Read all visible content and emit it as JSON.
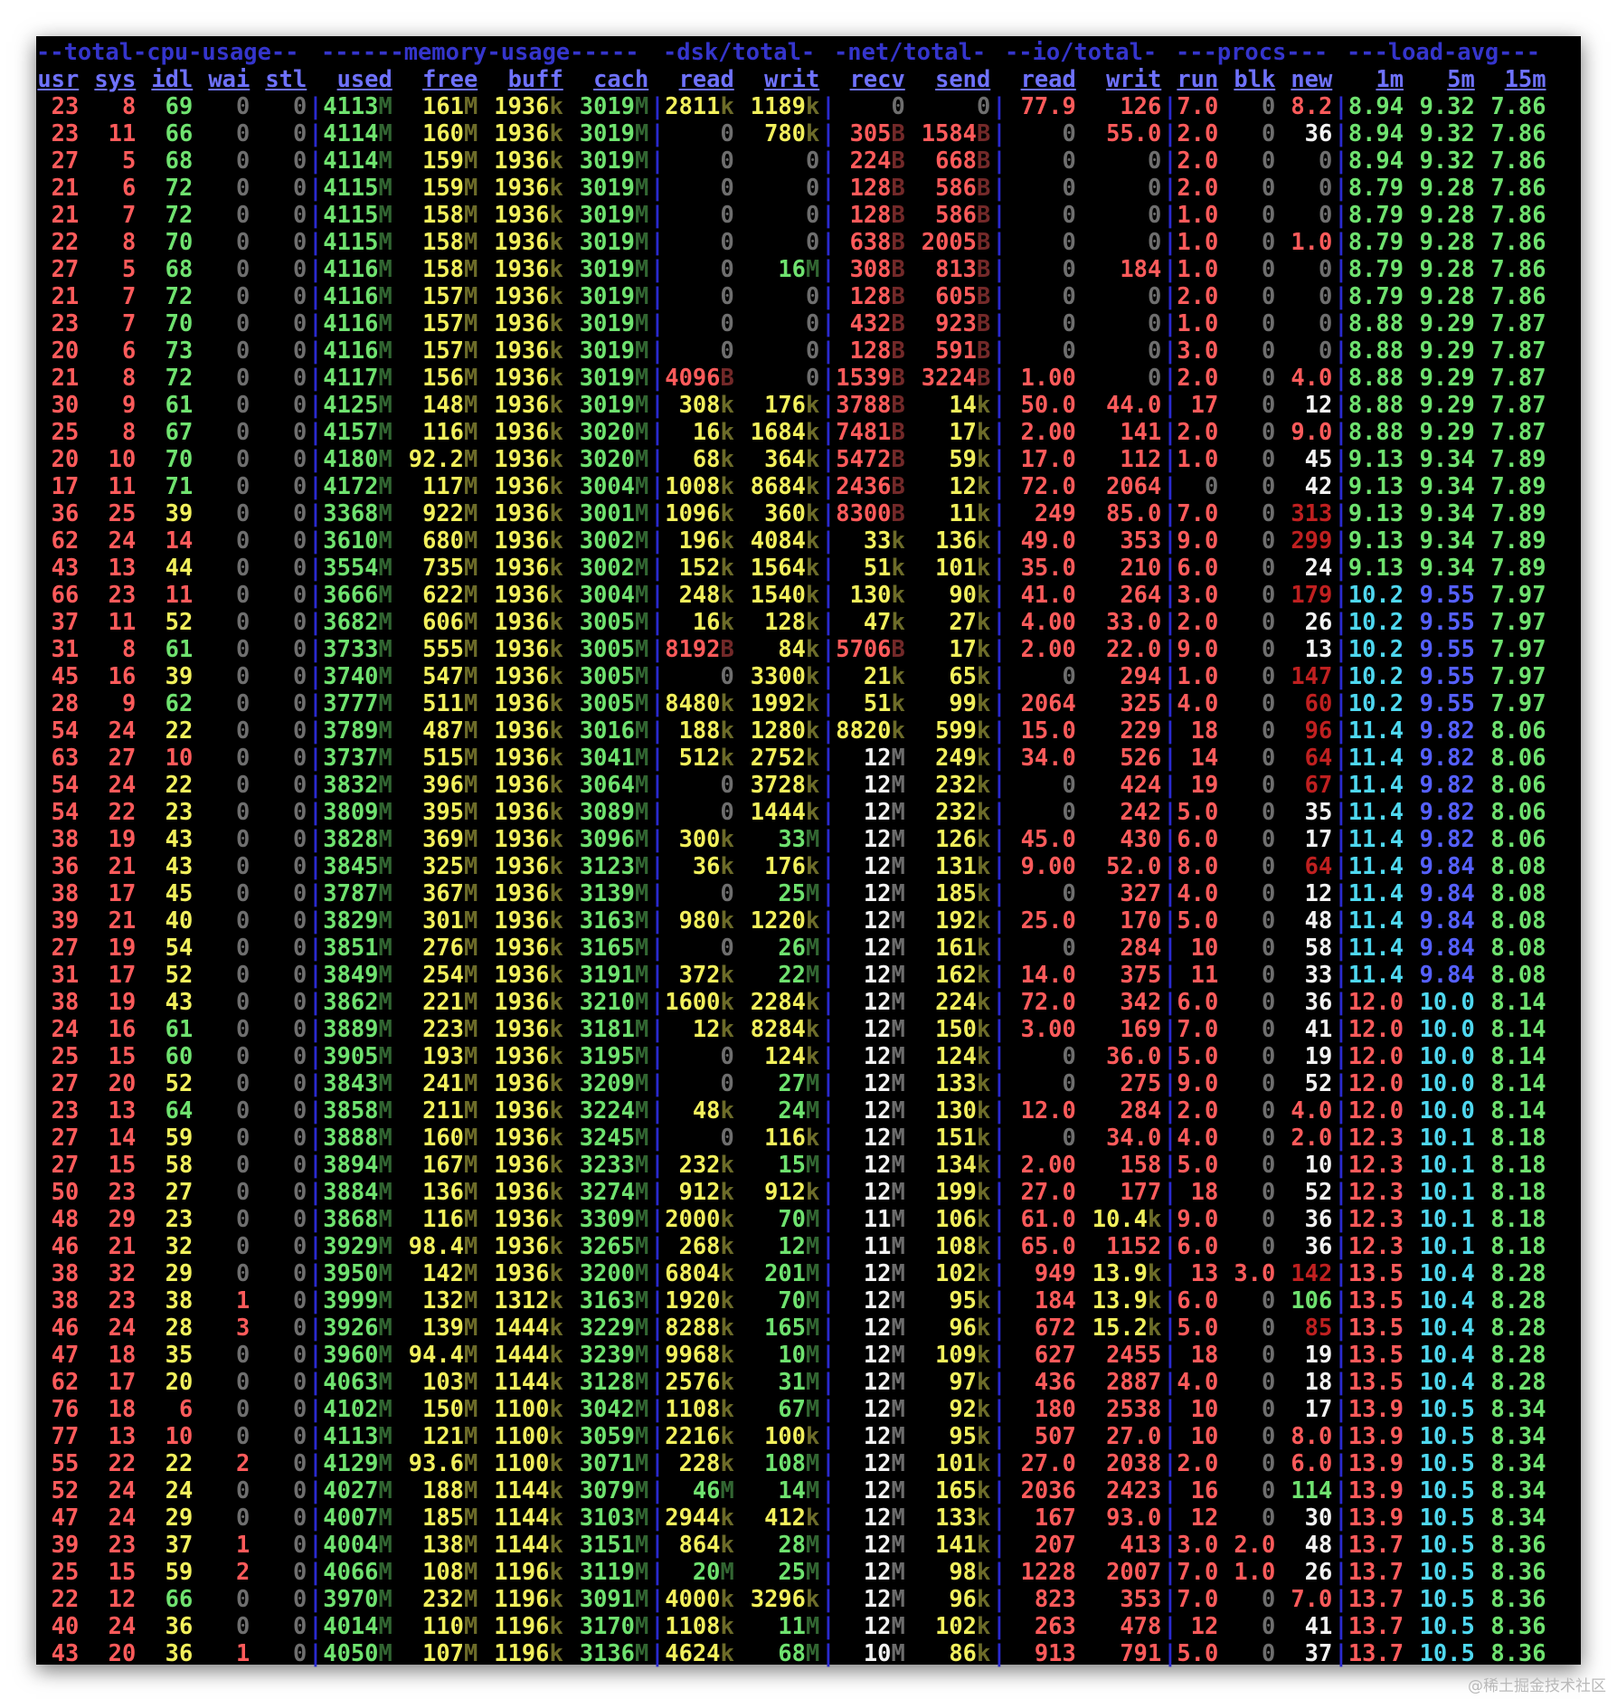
{
  "terminal": {
    "groups": [
      "--total-cpu-usage--",
      "------memory-usage-----",
      "-dsk/total-",
      "-net/total-",
      "--io/total-",
      "---procs---",
      "---load-avg---"
    ],
    "columns": [
      "usr",
      "sys",
      "idl",
      "wai",
      "stl",
      "used",
      "free",
      "buff",
      "cach",
      "read",
      "writ",
      "recv",
      "send",
      "read",
      "writ",
      "run",
      "blk",
      "new",
      "1m",
      "5m",
      "15m"
    ],
    "rows": [
      "23 8 69 0 0 4113M 161M 1936k 3019M 2811k 1189k 0 0 77.9 126 7.0 0 8.2 8.94 9.32 7.86",
      "23 11 66 0 0 4114M 160M 1936k 3019M 0 780k 305B 1584B 0 55.0 2.0 0 36 8.94 9.32 7.86",
      "27 5 68 0 0 4114M 159M 1936k 3019M 0 0 224B 668B 0 0 2.0 0 0 8.94 9.32 7.86",
      "21 6 72 0 0 4115M 159M 1936k 3019M 0 0 128B 586B 0 0 2.0 0 0 8.79 9.28 7.86",
      "21 7 72 0 0 4115M 158M 1936k 3019M 0 0 128B 586B 0 0 1.0 0 0 8.79 9.28 7.86",
      "22 8 70 0 0 4115M 158M 1936k 3019M 0 0 638B 2005B 0 0 1.0 0 1.0 8.79 9.28 7.86",
      "27 5 68 0 0 4116M 158M 1936k 3019M 0 16M 308B 813B 0 184 1.0 0 0 8.79 9.28 7.86",
      "21 7 72 0 0 4116M 157M 1936k 3019M 0 0 128B 605B 0 0 2.0 0 0 8.79 9.28 7.86",
      "23 7 70 0 0 4116M 157M 1936k 3019M 0 0 432B 923B 0 0 1.0 0 0 8.88 9.29 7.87",
      "20 6 73 0 0 4116M 157M 1936k 3019M 0 0 128B 591B 0 0 3.0 0 0 8.88 9.29 7.87",
      "21 8 72 0 0 4117M 156M 1936k 3019M 4096B 0 1539B 3224B 1.00 0 2.0 0 4.0 8.88 9.29 7.87",
      "30 9 61 0 0 4125M 148M 1936k 3019M 308k 176k 3788B 14k 50.0 44.0 17 0 12 8.88 9.29 7.87",
      "25 8 67 0 0 4157M 116M 1936k 3020M 16k 1684k 7481B 17k 2.00 141 2.0 0 9.0 8.88 9.29 7.87",
      "20 10 70 0 0 4180M 92.2M 1936k 3020M 68k 364k 5472B 59k 17.0 112 1.0 0 45 9.13 9.34 7.89",
      "17 11 71 0 0 4172M 117M 1936k 3004M 1008k 8684k 2436B 12k 72.0 2064 0 0 42 9.13 9.34 7.89",
      "36 25 39 0 0 3368M 922M 1936k 3001M 1096k 360k 8300B 11k 249 85.0 7.0 0 313 9.13 9.34 7.89",
      "62 24 14 0 0 3610M 680M 1936k 3002M 196k 4084k 33k 136k 49.0 353 9.0 0 299 9.13 9.34 7.89",
      "43 13 44 0 0 3554M 735M 1936k 3002M 152k 1564k 51k 101k 35.0 210 6.0 0 24 9.13 9.34 7.89",
      "66 23 11 0 0 3666M 622M 1936k 3004M 248k 1540k 130k 90k 41.0 264 3.0 0 179 10.2 9.55 7.97",
      "37 11 52 0 0 3682M 606M 1936k 3005M 16k 128k 47k 27k 4.00 33.0 2.0 0 26 10.2 9.55 7.97",
      "31 8 61 0 0 3733M 555M 1936k 3005M 8192B 84k 5706B 17k 2.00 22.0 9.0 0 13 10.2 9.55 7.97",
      "45 16 39 0 0 3740M 547M 1936k 3005M 0 3300k 21k 65k 0 294 1.0 0 147 10.2 9.55 7.97",
      "28 9 62 0 0 3777M 511M 1936k 3005M 8480k 1992k 51k 99k 2064 325 4.0 0 60 10.2 9.55 7.97",
      "54 24 22 0 0 3789M 487M 1936k 3016M 188k 1280k 8820k 599k 15.0 229 18 0 96 11.4 9.82 8.06",
      "63 27 10 0 0 3737M 515M 1936k 3041M 512k 2752k 12M 249k 34.0 526 14 0 64 11.4 9.82 8.06",
      "54 24 22 0 0 3832M 396M 1936k 3064M 0 3728k 12M 232k 0 424 19 0 67 11.4 9.82 8.06",
      "54 22 23 0 0 3809M 395M 1936k 3089M 0 1444k 12M 232k 0 242 5.0 0 35 11.4 9.82 8.06",
      "38 19 43 0 0 3828M 369M 1936k 3096M 300k 33M 12M 126k 45.0 430 6.0 0 17 11.4 9.82 8.06",
      "36 21 43 0 0 3845M 325M 1936k 3123M 36k 176k 12M 131k 9.00 52.0 8.0 0 64 11.4 9.84 8.08",
      "38 17 45 0 0 3787M 367M 1936k 3139M 0 25M 12M 185k 0 327 4.0 0 12 11.4 9.84 8.08",
      "39 21 40 0 0 3829M 301M 1936k 3163M 980k 1220k 12M 192k 25.0 170 5.0 0 48 11.4 9.84 8.08",
      "27 19 54 0 0 3851M 276M 1936k 3165M 0 26M 12M 161k 0 284 10 0 58 11.4 9.84 8.08",
      "31 17 52 0 0 3849M 254M 1936k 3191M 372k 22M 12M 162k 14.0 375 11 0 33 11.4 9.84 8.08",
      "38 19 43 0 0 3862M 221M 1936k 3210M 1600k 2284k 12M 224k 72.0 342 6.0 0 36 12.0 10.0 8.14",
      "24 16 61 0 0 3889M 223M 1936k 3181M 12k 8284k 12M 150k 3.00 169 7.0 0 41 12.0 10.0 8.14",
      "25 15 60 0 0 3905M 193M 1936k 3195M 0 124k 12M 124k 0 36.0 5.0 0 19 12.0 10.0 8.14",
      "27 20 52 0 0 3843M 241M 1936k 3209M 0 27M 12M 133k 0 275 9.0 0 52 12.0 10.0 8.14",
      "23 13 64 0 0 3858M 211M 1936k 3224M 48k 24M 12M 130k 12.0 284 2.0 0 4.0 12.0 10.0 8.14",
      "27 14 59 0 0 3888M 160M 1936k 3245M 0 116k 12M 151k 0 34.0 4.0 0 2.0 12.3 10.1 8.18",
      "27 15 58 0 0 3894M 167M 1936k 3233M 232k 15M 12M 134k 2.00 158 5.0 0 10 12.3 10.1 8.18",
      "50 23 27 0 0 3884M 136M 1936k 3274M 912k 912k 12M 199k 27.0 177 18 0 52 12.3 10.1 8.18",
      "48 29 23 0 0 3868M 116M 1936k 3309M 2000k 70M 11M 106k 61.0 10.4k 9.0 0 36 12.3 10.1 8.18",
      "46 21 32 0 0 3929M 98.4M 1936k 3265M 268k 12M 11M 108k 65.0 1152 6.0 0 36 12.3 10.1 8.18",
      "38 32 29 0 0 3950M 142M 1936k 3200M 6804k 201M 12M 102k 949 13.9k 13 3.0 142 13.5 10.4 8.28",
      "38 23 38 1 0 3999M 132M 1312k 3163M 1920k 70M 12M 95k 184 13.9k 6.0 0 106 13.5 10.4 8.28",
      "46 24 28 3 0 3926M 139M 1444k 3229M 8288k 165M 12M 96k 672 15.2k 5.0 0 85 13.5 10.4 8.28",
      "47 18 35 0 0 3960M 94.4M 1444k 3239M 9968k 10M 12M 109k 627 2455 18 0 19 13.5 10.4 8.28",
      "62 17 20 0 0 4063M 103M 1144k 3128M 2576k 31M 12M 97k 436 2887 4.0 0 18 13.5 10.4 8.28",
      "76 18 6 0 0 4102M 150M 1100k 3042M 1108k 67M 12M 92k 180 2538 10 0 17 13.9 10.5 8.34",
      "77 13 10 0 0 4113M 121M 1100k 3059M 2216k 100k 12M 95k 507 27.0 10 0 8.0 13.9 10.5 8.34",
      "55 22 22 2 0 4129M 93.6M 1100k 3071M 228k 108M 12M 101k 27.0 2038 2.0 0 6.0 13.9 10.5 8.34",
      "52 24 24 0 0 4027M 188M 1144k 3079M 46M 14M 12M 165k 2036 2423 16 0 114 13.9 10.5 8.34",
      "47 24 29 0 0 4007M 185M 1144k 3103M 2944k 412k 12M 133k 167 93.0 12 0 30 13.9 10.5 8.34",
      "39 23 37 1 0 4004M 138M 1144k 3151M 864k 28M 12M 141k 207 413 3.0 2.0 48 13.7 10.5 8.36",
      "25 15 59 2 0 4066M 108M 1196k 3119M 20M 25M 12M 98k 1228 2007 7.0 1.0 26 13.7 10.5 8.36",
      "22 12 66 0 0 3970M 232M 1196k 3091M 4000k 3296k 12M 96k 823 353 7.0 0 7.0 13.7 10.5 8.36",
      "40 24 36 0 0 4014M 110M 1196k 3170M 1108k 11M 12M 102k 263 478 12 0 41 13.7 10.5 8.36",
      "43 20 36 1 0 4050M 107M 1196k 3136M 4624k 68M 10M 86k 913 791 5.0 0 37 13.7 10.5 8.36"
    ],
    "colors": {
      "bg": "#000000",
      "header": "#6f72ff",
      "group": "#3535cc",
      "separator": "#2a2ad0",
      "green": "#6fe26f",
      "yellow": "#f2f05c",
      "red": "#ff5b5b",
      "darkred": "#c02020",
      "grey": "#6e6e6e",
      "white": "#f2f2f2",
      "blue": "#5560ff",
      "cyan": "#4fd8f0"
    }
  },
  "watermark": "@稀土掘金技术社区"
}
